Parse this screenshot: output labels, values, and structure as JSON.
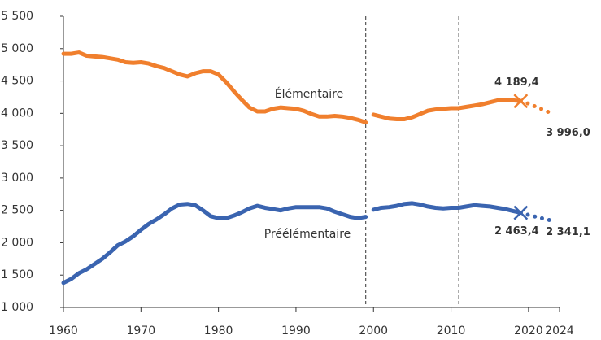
{
  "chart_data": {
    "type": "line",
    "xlim": [
      1960,
      2024
    ],
    "xticks": [
      1960,
      1970,
      1980,
      1990,
      2000,
      2010,
      2020,
      2024
    ],
    "ylim": [
      1000,
      5500
    ],
    "yticks": [
      {
        "value": 1000,
        "label": "1 000"
      },
      {
        "value": 1500,
        "label": "1 500"
      },
      {
        "value": 2000,
        "label": "2 000"
      },
      {
        "value": 2500,
        "label": "2 500"
      },
      {
        "value": 3000,
        "label": "3 000"
      },
      {
        "value": 3500,
        "label": "3 500"
      },
      {
        "value": 4000,
        "label": "4 000"
      },
      {
        "value": 4500,
        "label": "4 500"
      },
      {
        "value": 5000,
        "label": "5 000"
      },
      {
        "value": 5500,
        "label": "5 500"
      }
    ],
    "vlines": [
      1999,
      2011
    ],
    "series": [
      {
        "name": "Élémentaire",
        "color": "#f07f2d",
        "style": "solid",
        "x": [
          1960,
          1961,
          1962,
          1963,
          1964,
          1965,
          1966,
          1967,
          1968,
          1969,
          1970,
          1971,
          1972,
          1973,
          1974,
          1975,
          1976,
          1977,
          1978,
          1979,
          1980,
          1981,
          1982,
          1983,
          1984,
          1985,
          1986,
          1987,
          1988,
          1989,
          1990,
          1991,
          1992,
          1993,
          1994,
          1995,
          1996,
          1997,
          1998,
          1999
        ],
        "values": [
          4920,
          4920,
          4940,
          4890,
          4880,
          4870,
          4850,
          4830,
          4790,
          4780,
          4790,
          4770,
          4730,
          4700,
          4650,
          4600,
          4570,
          4620,
          4650,
          4650,
          4600,
          4480,
          4340,
          4210,
          4090,
          4030,
          4030,
          4070,
          4090,
          4080,
          4070,
          4040,
          3990,
          3950,
          3950,
          3960,
          3950,
          3930,
          3900,
          3860
        ]
      },
      {
        "color": "#f07f2d",
        "style": "solid",
        "x": [
          2000,
          2001,
          2002,
          2003,
          2004,
          2005,
          2006,
          2007,
          2008,
          2009,
          2010,
          2011,
          2012,
          2013,
          2014,
          2015,
          2016,
          2017,
          2018,
          2019
        ],
        "values": [
          3980,
          3950,
          3920,
          3910,
          3910,
          3940,
          3990,
          4040,
          4060,
          4070,
          4080,
          4080,
          4100,
          4120,
          4140,
          4170,
          4200,
          4210,
          4200,
          4189.4
        ]
      },
      {
        "color": "#f07f2d",
        "style": "dotted",
        "marker": "x",
        "x": [
          2019,
          2020,
          2021,
          2022,
          2023
        ],
        "values": [
          4189.4,
          4150,
          4100,
          4050,
          3996.0
        ],
        "value_labels": [
          "4 189,4",
          null,
          null,
          null,
          "3 996,0"
        ]
      },
      {
        "name": "Préélémentaire",
        "color": "#3a64b0",
        "style": "solid",
        "x": [
          1960,
          1961,
          1962,
          1963,
          1964,
          1965,
          1966,
          1967,
          1968,
          1969,
          1970,
          1971,
          1972,
          1973,
          1974,
          1975,
          1976,
          1977,
          1978,
          1979,
          1980,
          1981,
          1982,
          1983,
          1984,
          1985,
          1986,
          1987,
          1988,
          1989,
          1990,
          1991,
          1992,
          1993,
          1994,
          1995,
          1996,
          1997,
          1998,
          1999
        ],
        "values": [
          1380,
          1440,
          1530,
          1590,
          1670,
          1750,
          1850,
          1960,
          2020,
          2100,
          2200,
          2290,
          2360,
          2440,
          2530,
          2590,
          2600,
          2580,
          2500,
          2410,
          2380,
          2380,
          2420,
          2470,
          2530,
          2570,
          2540,
          2520,
          2500,
          2530,
          2550,
          2550,
          2550,
          2550,
          2530,
          2480,
          2440,
          2400,
          2380,
          2400
        ]
      },
      {
        "color": "#3a64b0",
        "style": "solid",
        "x": [
          2000,
          2001,
          2002,
          2003,
          2004,
          2005,
          2006,
          2007,
          2008,
          2009,
          2010,
          2011,
          2012,
          2013,
          2014,
          2015,
          2016,
          2017,
          2018,
          2019
        ],
        "values": [
          2510,
          2540,
          2550,
          2570,
          2600,
          2610,
          2590,
          2560,
          2540,
          2530,
          2540,
          2540,
          2560,
          2580,
          2570,
          2560,
          2540,
          2520,
          2490,
          2463.4
        ]
      },
      {
        "color": "#3a64b0",
        "style": "dotted",
        "marker": "x",
        "x": [
          2019,
          2020,
          2021,
          2022,
          2023
        ],
        "values": [
          2463.4,
          2430,
          2400,
          2370,
          2341.1
        ],
        "value_labels": [
          "2 463,4",
          null,
          null,
          null,
          "2 341,1"
        ]
      }
    ]
  }
}
